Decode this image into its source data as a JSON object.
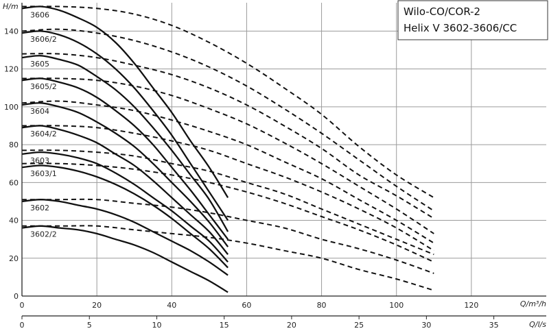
{
  "chart_data": {
    "type": "line",
    "title_lines": [
      "Wilo-CO/COR-2",
      "Helix V 3602-3606/CC"
    ],
    "ylabel": "H/m",
    "xlabel": "Q/m³/h",
    "x2label": "Q/l/s",
    "xlim": [
      0,
      140
    ],
    "ylim": [
      0,
      155
    ],
    "x_ticks": [
      0,
      20,
      40,
      60,
      80,
      100,
      120
    ],
    "y_ticks": [
      0,
      20,
      40,
      60,
      80,
      100,
      120,
      140
    ],
    "x2_ticks": [
      0,
      5,
      10,
      15,
      20,
      25,
      30,
      35
    ],
    "grid": true,
    "solid_series": [
      {
        "label": "3606",
        "x": [
          0,
          5,
          10,
          15,
          20,
          25,
          30,
          35,
          40,
          45,
          50,
          55
        ],
        "y": [
          152,
          153,
          151,
          147,
          142,
          134,
          123,
          110,
          97,
          82,
          68,
          52
        ]
      },
      {
        "label": "3606/2",
        "x": [
          0,
          5,
          10,
          15,
          20,
          25,
          30,
          35,
          40,
          45,
          50,
          55
        ],
        "y": [
          139,
          140,
          138,
          134,
          128,
          120,
          110,
          98,
          85,
          70,
          55,
          40
        ]
      },
      {
        "label": "3605",
        "x": [
          0,
          5,
          10,
          15,
          20,
          25,
          30,
          35,
          40,
          45,
          50,
          55
        ],
        "y": [
          126,
          127,
          125,
          122,
          116,
          109,
          100,
          89,
          77,
          64,
          51,
          34
        ]
      },
      {
        "label": "3605/2",
        "x": [
          0,
          5,
          10,
          15,
          20,
          25,
          30,
          35,
          40,
          45,
          50,
          55
        ],
        "y": [
          114,
          115,
          113,
          110,
          105,
          98,
          90,
          80,
          68,
          56,
          43,
          30
        ]
      },
      {
        "label": "3604",
        "x": [
          0,
          5,
          10,
          15,
          20,
          25,
          30,
          35,
          40,
          45,
          50,
          55
        ],
        "y": [
          101,
          102,
          100,
          97,
          92,
          86,
          79,
          70,
          60,
          50,
          39,
          26
        ]
      },
      {
        "label": "3604/2",
        "x": [
          0,
          5,
          10,
          15,
          20,
          25,
          30,
          35,
          40,
          45,
          50,
          55
        ],
        "y": [
          89,
          90,
          88,
          85,
          81,
          75,
          69,
          61,
          52,
          43,
          34,
          22
        ]
      },
      {
        "label": "3603",
        "x": [
          0,
          5,
          10,
          15,
          20,
          25,
          30,
          35,
          40,
          45,
          50,
          55
        ],
        "y": [
          75,
          76,
          75,
          73,
          70,
          65,
          59,
          52,
          45,
          37,
          29,
          18
        ]
      },
      {
        "label": "3603/1",
        "x": [
          0,
          5,
          10,
          15,
          20,
          25,
          30,
          35,
          40,
          45,
          50,
          55
        ],
        "y": [
          68,
          69,
          68,
          66,
          63,
          59,
          54,
          48,
          41,
          33,
          25,
          15
        ]
      },
      {
        "label": "3602",
        "x": [
          0,
          5,
          10,
          15,
          20,
          25,
          30,
          35,
          40,
          45,
          50,
          55
        ],
        "y": [
          50,
          51,
          50,
          48,
          46,
          43,
          39,
          34,
          29,
          24,
          18,
          11
        ]
      },
      {
        "label": "3602/2",
        "x": [
          0,
          5,
          10,
          15,
          20,
          25,
          30,
          35,
          40,
          45,
          50,
          55
        ],
        "y": [
          36,
          37,
          36,
          35,
          33,
          30,
          27,
          23,
          18,
          13,
          8,
          2
        ]
      }
    ],
    "dashed_series": [
      {
        "x": [
          0,
          10,
          20,
          30,
          40,
          50,
          60,
          70,
          80,
          90,
          100,
          110
        ],
        "y": [
          153,
          153,
          152,
          149,
          143,
          134,
          123,
          110,
          96,
          79,
          64,
          52
        ]
      },
      {
        "x": [
          0,
          10,
          20,
          30,
          40,
          50,
          60,
          70,
          80,
          90,
          100,
          110
        ],
        "y": [
          140,
          141,
          139,
          135,
          129,
          121,
          111,
          99,
          86,
          72,
          58,
          45
        ]
      },
      {
        "x": [
          0,
          10,
          20,
          30,
          40,
          50,
          60,
          70,
          80,
          90,
          100,
          110
        ],
        "y": [
          128,
          128,
          126,
          122,
          117,
          110,
          101,
          90,
          78,
          64,
          53,
          41
        ]
      },
      {
        "x": [
          0,
          10,
          20,
          30,
          40,
          50,
          60,
          70,
          80,
          90,
          100,
          110
        ],
        "y": [
          115,
          115,
          114,
          111,
          106,
          99,
          91,
          81,
          70,
          58,
          46,
          33
        ]
      },
      {
        "x": [
          0,
          10,
          20,
          30,
          40,
          50,
          60,
          70,
          80,
          90,
          100,
          110
        ],
        "y": [
          102,
          103,
          101,
          98,
          93,
          87,
          80,
          71,
          62,
          51,
          40,
          28
        ]
      },
      {
        "x": [
          0,
          10,
          20,
          30,
          40,
          50,
          60,
          70,
          80,
          90,
          100,
          110
        ],
        "y": [
          90,
          90,
          89,
          86,
          82,
          77,
          70,
          63,
          55,
          46,
          36,
          24
        ]
      },
      {
        "x": [
          0,
          10,
          20,
          30,
          40,
          50,
          60,
          70,
          80,
          90,
          100,
          110
        ],
        "y": [
          77,
          77,
          76,
          74,
          70,
          66,
          60,
          54,
          46,
          38,
          30,
          22
        ]
      },
      {
        "x": [
          0,
          10,
          20,
          30,
          40,
          50,
          60,
          70,
          80,
          90,
          100,
          110
        ],
        "y": [
          70,
          70,
          69,
          67,
          64,
          60,
          55,
          49,
          42,
          35,
          27,
          18
        ]
      },
      {
        "x": [
          0,
          10,
          20,
          30,
          40,
          50,
          60,
          70,
          80,
          90,
          100,
          110
        ],
        "y": [
          51,
          51,
          51,
          49,
          47,
          44,
          40,
          36,
          30,
          25,
          19,
          12
        ]
      },
      {
        "x": [
          0,
          10,
          20,
          30,
          40,
          50,
          60,
          70,
          80,
          90,
          100,
          110
        ],
        "y": [
          37,
          37,
          37,
          35,
          33,
          31,
          28,
          24,
          20,
          14,
          9,
          3
        ]
      }
    ]
  }
}
